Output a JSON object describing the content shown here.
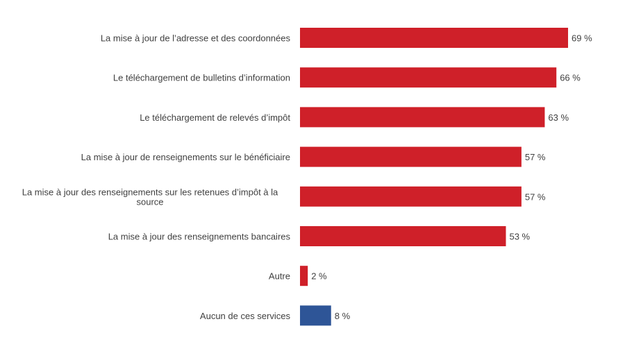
{
  "chart_data": {
    "type": "bar",
    "orientation": "horizontal",
    "categories": [
      "La mise à jour de l’adresse et des coordonnées",
      "Le téléchargement de bulletins d’information",
      "Le téléchargement de relevés d’impôt",
      "La mise à jour de renseignements sur le bénéficiaire",
      "La mise à jour des renseignements sur les retenues d’impôt à la source",
      "La mise à jour des renseignements bancaires",
      "Autre",
      "Aucun de ces services"
    ],
    "category_lines": [
      [
        "La mise à jour de l’adresse et des coordonnées"
      ],
      [
        "Le téléchargement de bulletins d’information"
      ],
      [
        "Le téléchargement de relevés d’impôt"
      ],
      [
        "La mise à jour de renseignements sur le bénéficiaire"
      ],
      [
        "La mise à jour des renseignements sur les retenues d’impôt à la",
        "source"
      ],
      [
        "La mise à jour des renseignements bancaires"
      ],
      [
        "Autre"
      ],
      [
        "Aucun de ces services"
      ]
    ],
    "values": [
      69,
      66,
      63,
      57,
      57,
      53,
      2,
      8
    ],
    "data_labels": [
      "69 %",
      "66 %",
      "63 %",
      "57 %",
      "57 %",
      "53 %",
      "2 %",
      "8 %"
    ],
    "bar_colors": [
      "#CF2029",
      "#CF2029",
      "#CF2029",
      "#CF2029",
      "#CF2029",
      "#CF2029",
      "#CF2029",
      "#2E5597"
    ],
    "title": "",
    "xlabel": "",
    "ylabel": "",
    "xlim": [
      0,
      100
    ],
    "grid": false,
    "legend": "none"
  }
}
